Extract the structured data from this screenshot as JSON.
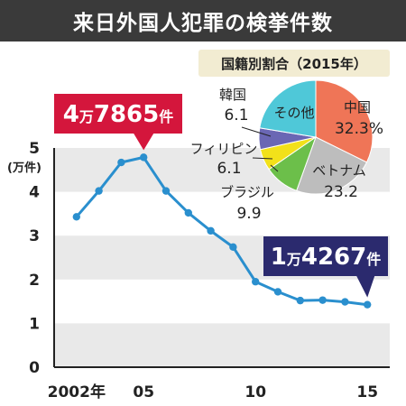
{
  "title": "来日外国人犯罪の検挙件数",
  "colors": {
    "title_bg": "#3a3a3a",
    "line": "#2a8fce",
    "band": "#e9e9e9",
    "callout_peak": "#d4163c",
    "callout_last": "#2b2a6e",
    "pie_box": "#f2ecd2"
  },
  "chart_data": [
    {
      "type": "line",
      "ylabel": "(万件)",
      "ylim": [
        0,
        5
      ],
      "yticks": [
        "0",
        "1",
        "2",
        "3",
        "4",
        "5"
      ],
      "x_tick_labels": [
        {
          "x": 2002,
          "text": "2002年"
        },
        {
          "x": 2005,
          "text": "05"
        },
        {
          "x": 2010,
          "text": "10"
        },
        {
          "x": 2015,
          "text": "15"
        }
      ],
      "x": [
        2002,
        2003,
        2004,
        2005,
        2006,
        2007,
        2008,
        2009,
        2010,
        2011,
        2012,
        2013,
        2014,
        2015
      ],
      "values": [
        3.43,
        4.02,
        4.67,
        4.7865,
        4.02,
        3.52,
        3.11,
        2.74,
        1.95,
        1.72,
        1.52,
        1.53,
        1.49,
        1.4267
      ],
      "annotations": [
        {
          "x": 2005,
          "text": "4万7865件",
          "parts": [
            "4",
            "万",
            "7865",
            "件"
          ]
        },
        {
          "x": 2015,
          "text": "1万4267件",
          "parts": [
            "1",
            "万",
            "4267",
            "件"
          ]
        }
      ]
    },
    {
      "type": "pie",
      "title": "国籍別割合（2015年）",
      "slices": [
        {
          "label": "中国",
          "value": 32.3,
          "value_text": "32.3%",
          "color": "#ef7557"
        },
        {
          "label": "ベトナム",
          "value": 23.2,
          "value_text": "23.2",
          "color": "#bdbdbd"
        },
        {
          "label": "ブラジル",
          "value": 9.9,
          "value_text": "9.9",
          "color": "#6cbf4a"
        },
        {
          "label": "フィリピン",
          "value": 6.1,
          "value_text": "6.1",
          "color": "#f2e11a"
        },
        {
          "label": "韓国",
          "value": 6.1,
          "value_text": "6.1",
          "color": "#6a67b4"
        },
        {
          "label": "その他",
          "value": 22.4,
          "value_text": "",
          "color": "#4fc8d8"
        }
      ]
    }
  ]
}
